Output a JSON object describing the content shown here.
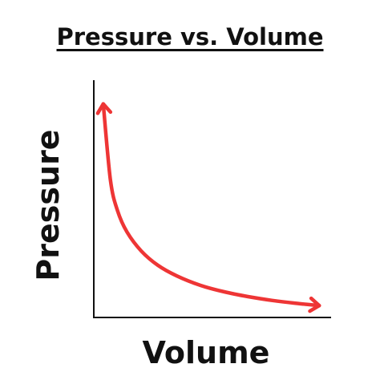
{
  "chart_data": {
    "type": "line",
    "title": "Pressure vs. Volume",
    "xlabel": "Volume",
    "ylabel": "Pressure",
    "grid": false,
    "legend": "none",
    "ticks": "none",
    "arrowheads": "both-ends",
    "series": [
      {
        "x": [
          0.04,
          0.07,
          0.1,
          0.14,
          0.2,
          0.27,
          0.35,
          0.45,
          0.55,
          0.65,
          0.75,
          0.85,
          0.95
        ],
        "y": [
          0.9,
          0.58,
          0.45,
          0.36,
          0.28,
          0.22,
          0.175,
          0.135,
          0.108,
          0.088,
          0.072,
          0.06,
          0.05
        ],
        "color": "#ee3535"
      }
    ]
  },
  "colors": {
    "curve": "#ee3535",
    "axis": "#111111",
    "text": "#111111",
    "background": "#ffffff"
  }
}
